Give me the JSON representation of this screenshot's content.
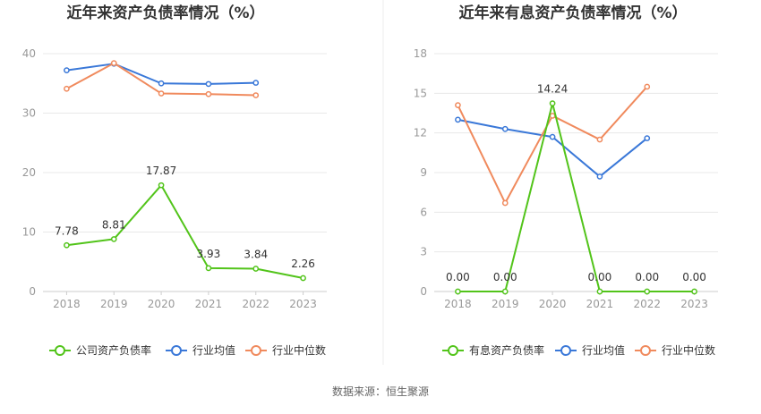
{
  "source_text": "数据来源：恒生聚源",
  "colors": {
    "green": "#52c41a",
    "blue": "#3a78d8",
    "orange": "#f08a5d"
  },
  "chart_data": [
    {
      "type": "line",
      "title": "近年来资产负债率情况（%）",
      "xlabel": "",
      "ylabel": "",
      "categories": [
        "2018",
        "2019",
        "2020",
        "2021",
        "2022",
        "2023"
      ],
      "ylim": [
        0,
        40
      ],
      "yticks": [
        0,
        10,
        20,
        30,
        40
      ],
      "grid": true,
      "legend_position": "bottom",
      "series": [
        {
          "name": "公司资产负债率",
          "color": "#52c41a",
          "icon": "circle-line-icon",
          "values": [
            7.78,
            8.81,
            17.87,
            3.93,
            3.84,
            2.26
          ],
          "labels": [
            "7.78",
            "8.81",
            "17.87",
            "3.93",
            "3.84",
            "2.26"
          ]
        },
        {
          "name": "行业均值",
          "color": "#3a78d8",
          "icon": "circle-line-icon",
          "values": [
            37.2,
            38.3,
            35.0,
            34.9,
            35.1,
            null
          ]
        },
        {
          "name": "行业中位数",
          "color": "#f08a5d",
          "icon": "circle-line-icon",
          "values": [
            34.1,
            38.4,
            33.3,
            33.2,
            33.0,
            null
          ]
        }
      ]
    },
    {
      "type": "line",
      "title": "近年来有息资产负债率情况（%）",
      "xlabel": "",
      "ylabel": "",
      "categories": [
        "2018",
        "2019",
        "2020",
        "2021",
        "2022",
        "2023"
      ],
      "ylim": [
        0,
        18
      ],
      "yticks": [
        0,
        3,
        6,
        9,
        12,
        15,
        18
      ],
      "grid": true,
      "legend_position": "bottom",
      "series": [
        {
          "name": "有息资产负债率",
          "color": "#52c41a",
          "icon": "circle-line-icon",
          "values": [
            0.0,
            0.0,
            14.24,
            0.0,
            0.0,
            0.0
          ],
          "labels": [
            "0.00",
            "0.00",
            "14.24",
            "0.00",
            "0.00",
            "0.00"
          ]
        },
        {
          "name": "行业均值",
          "color": "#3a78d8",
          "icon": "circle-line-icon",
          "values": [
            13.0,
            12.3,
            11.7,
            8.7,
            11.6,
            null
          ]
        },
        {
          "name": "行业中位数",
          "color": "#f08a5d",
          "icon": "circle-line-icon",
          "values": [
            14.1,
            6.7,
            13.3,
            11.5,
            15.5,
            null
          ]
        }
      ]
    }
  ]
}
